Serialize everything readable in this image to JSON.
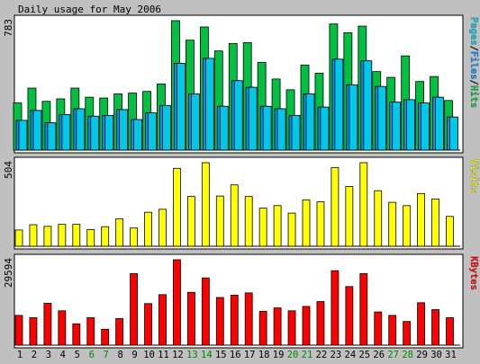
{
  "title": "Daily usage for May 2006",
  "colors": {
    "background": "#c0c0c0",
    "panel": "#ffffff",
    "hits": "#00c040",
    "files": "#0090ff",
    "pages": "#00c8e8",
    "visits": "#ffff00",
    "kbytes": "#ff0000",
    "weekend_day": "#008800",
    "weekday": "#000000"
  },
  "chart_data": [
    {
      "type": "bar",
      "panel": "pages-files-hits",
      "y_max_label": "783",
      "ylim": [
        0,
        783
      ],
      "legend": {
        "parts": [
          {
            "text": "Pages",
            "color": "#00c8e8"
          },
          {
            "text": "/",
            "color": "#000000"
          },
          {
            "text": "Files",
            "color": "#0090ff"
          },
          {
            "text": "/",
            "color": "#000000"
          },
          {
            "text": "Hits",
            "color": "#00c040"
          }
        ]
      },
      "series": [
        {
          "name": "Hits",
          "color": "#00c040",
          "values": [
            285,
            375,
            295,
            310,
            375,
            320,
            315,
            340,
            345,
            355,
            400,
            783,
            665,
            745,
            600,
            645,
            650,
            530,
            430,
            365,
            515,
            465,
            763,
            710,
            750,
            475,
            440,
            570,
            415,
            445,
            300
          ]
        },
        {
          "name": "Files",
          "color": "#0090ff",
          "values": [
            180,
            240,
            165,
            215,
            250,
            205,
            210,
            245,
            185,
            225,
            270,
            525,
            340,
            555,
            265,
            420,
            380,
            265,
            250,
            210,
            340,
            260,
            550,
            395,
            540,
            385,
            290,
            305,
            285,
            320,
            200
          ]
        },
        {
          "name": "Pages",
          "color": "#00c8e8",
          "values": [
            180,
            240,
            165,
            215,
            250,
            205,
            210,
            245,
            185,
            225,
            270,
            525,
            340,
            555,
            265,
            420,
            380,
            265,
            250,
            210,
            340,
            260,
            550,
            395,
            540,
            385,
            290,
            305,
            285,
            320,
            200
          ]
        }
      ]
    },
    {
      "type": "bar",
      "panel": "visits",
      "y_max_label": "504",
      "ylim": [
        0,
        504
      ],
      "legend": {
        "parts": [
          {
            "text": "Visits",
            "color": "#ffff00"
          }
        ]
      },
      "series": [
        {
          "name": "Visits",
          "color": "#ffff00",
          "values": [
            98,
            130,
            120,
            132,
            132,
            100,
            118,
            165,
            110,
            205,
            223,
            470,
            300,
            504,
            303,
            370,
            300,
            230,
            245,
            200,
            280,
            268,
            475,
            360,
            504,
            335,
            265,
            245,
            318,
            285,
            180
          ]
        }
      ]
    },
    {
      "type": "bar",
      "panel": "kbytes",
      "y_max_label": "29594",
      "ylim": [
        0,
        29594
      ],
      "legend": {
        "parts": [
          {
            "text": "KBytes",
            "color": "#ff0000"
          }
        ]
      },
      "series": [
        {
          "name": "KBytes",
          "color": "#ff0000",
          "values": [
            10300,
            9500,
            14500,
            11900,
            7400,
            9500,
            5500,
            9200,
            24800,
            14400,
            17500,
            29594,
            18300,
            23300,
            16500,
            17300,
            18100,
            11700,
            12900,
            11900,
            13400,
            15100,
            25800,
            20300,
            24800,
            11500,
            10300,
            8200,
            14700,
            12300,
            9500
          ]
        }
      ]
    }
  ],
  "x_axis": {
    "labels": [
      "1",
      "2",
      "3",
      "4",
      "5",
      "6",
      "7",
      "8",
      "9",
      "10",
      "11",
      "12",
      "13",
      "14",
      "15",
      "16",
      "17",
      "18",
      "19",
      "20",
      "21",
      "22",
      "23",
      "24",
      "25",
      "26",
      "27",
      "28",
      "29",
      "30",
      "31"
    ],
    "weekend": [
      false,
      false,
      false,
      false,
      false,
      true,
      true,
      false,
      false,
      false,
      false,
      false,
      true,
      true,
      false,
      false,
      false,
      false,
      false,
      true,
      true,
      false,
      false,
      false,
      false,
      false,
      true,
      true,
      false,
      false,
      false
    ]
  }
}
